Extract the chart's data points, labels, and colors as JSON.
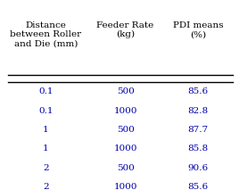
{
  "col1_header": "Distance\nbetween Roller\nand Die (mm)",
  "col2_header": "Feeder Rate\n(kg)",
  "col3_header": "PDI means\n(%)",
  "rows": [
    [
      "0.1",
      "500",
      "85.6"
    ],
    [
      "0.1",
      "1000",
      "82.8"
    ],
    [
      "1",
      "500",
      "87.7"
    ],
    [
      "1",
      "1000",
      "85.8"
    ],
    [
      "2",
      "500",
      "90.6"
    ],
    [
      "2",
      "1000",
      "85.6"
    ]
  ],
  "text_color": "#0000aa",
  "header_color": "#000000",
  "bg_color": "#ffffff",
  "font_size": 7.5,
  "header_font_size": 7.5
}
